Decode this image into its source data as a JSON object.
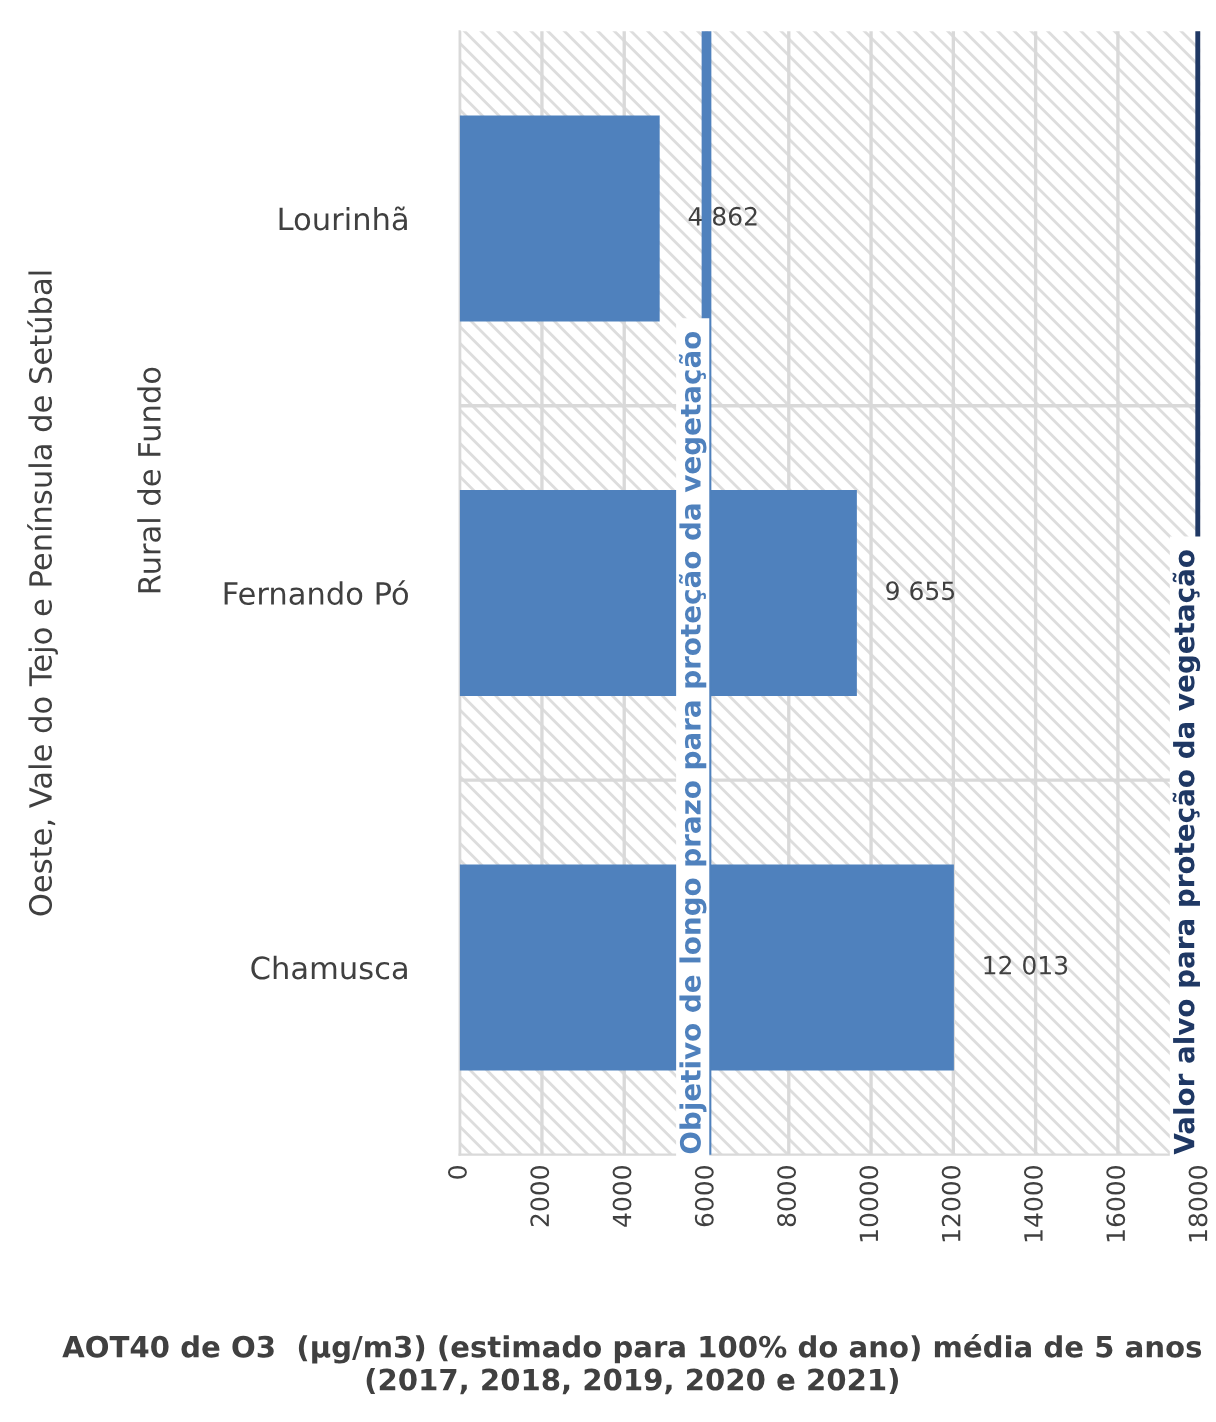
{
  "chart_data": {
    "type": "bar",
    "orientation": "horizontal",
    "categories": [
      "Lourinhã",
      "Fernando Pó",
      "Chamusca"
    ],
    "values": [
      4862,
      9655,
      12013
    ],
    "value_labels": [
      "4 862",
      "9 655",
      "12 013"
    ],
    "color": "#4f81bd",
    "xlim": [
      0,
      18000
    ],
    "xticks": [
      0,
      2000,
      4000,
      6000,
      8000,
      10000,
      12000,
      14000,
      16000,
      18000
    ],
    "xlabel": "AOT40 de O3  (µg/m3) (estimado para 100% do ano) média de 5 anos (2017, 2018, 2019, 2020 e 2021)",
    "ref_lines": [
      {
        "axis": "x",
        "value": 6000,
        "label": "Objetivo de longo prazo para proteção da vegetação",
        "color": "#4f81bd"
      },
      {
        "axis": "x",
        "value": 18000,
        "label": "Valor alvo para proteção da vegetação",
        "color": "#1f3864"
      }
    ],
    "annotations": [
      "Rural de Fundo",
      "Oeste, Vale do Tejo e Península de Setúbal"
    ],
    "grid": "x"
  }
}
